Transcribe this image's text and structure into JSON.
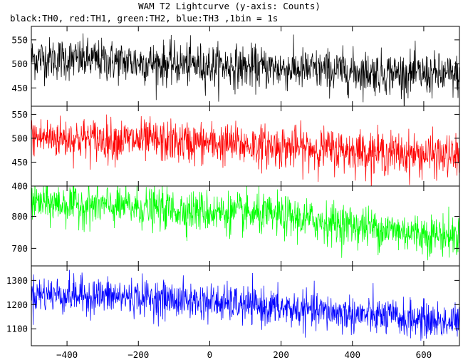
{
  "chart_data": {
    "type": "line",
    "title": "WAM T2 Lightcurve (y-axis: Counts)",
    "subtitle": "black:TH0, red:TH1, green:TH2, blue:TH3 ,1bin = 1s",
    "xlim": [
      -500,
      700
    ],
    "xticks": [
      -400,
      -200,
      0,
      200,
      400,
      600
    ],
    "xtick_labels": [
      "−400",
      "−200",
      "0",
      "200",
      "400",
      "600"
    ],
    "grid": false,
    "bin_seconds": 1,
    "series": [
      {
        "name": "TH0",
        "color": "#000000",
        "ylim": [
          412,
          578
        ],
        "yticks": [
          450,
          500,
          550
        ],
        "ytick_labels": [
          "450",
          "500",
          "550"
        ],
        "trend_x": [
          -500,
          -400,
          -200,
          0,
          200,
          400,
          600,
          700
        ],
        "trend_y": [
          512,
          510,
          503,
          497,
          490,
          484,
          478,
          475
        ],
        "noise_sd": 22
      },
      {
        "name": "TH1",
        "color": "#ff0000",
        "ylim": [
          400,
          567
        ],
        "yticks": [
          400,
          450,
          500,
          550
        ],
        "ytick_labels": [
          "400",
          "450",
          "500",
          "550"
        ],
        "trend_x": [
          -500,
          -400,
          -200,
          0,
          200,
          400,
          600,
          700
        ],
        "trend_y": [
          502,
          500,
          495,
          489,
          482,
          474,
          465,
          461
        ],
        "noise_sd": 22
      },
      {
        "name": "TH2",
        "color": "#00ff00",
        "ylim": [
          645,
          895
        ],
        "yticks": [
          700,
          800
        ],
        "ytick_labels": [
          "700",
          "800"
        ],
        "trend_x": [
          -500,
          -400,
          -200,
          0,
          200,
          400,
          600,
          700
        ],
        "trend_y": [
          842,
          838,
          828,
          815,
          800,
          772,
          745,
          738
        ],
        "noise_sd": 32
      },
      {
        "name": "TH3",
        "color": "#0000ff",
        "ylim": [
          1030,
          1360
        ],
        "yticks": [
          1100,
          1200,
          1300
        ],
        "ytick_labels": [
          "1100",
          "1200",
          "1300"
        ],
        "trend_x": [
          -500,
          -400,
          -200,
          0,
          200,
          400,
          600,
          700
        ],
        "trend_y": [
          1245,
          1240,
          1230,
          1210,
          1185,
          1160,
          1135,
          1125
        ],
        "noise_sd": 38
      }
    ]
  }
}
